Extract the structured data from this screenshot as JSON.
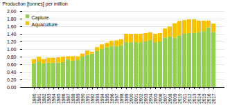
{
  "chart_data": {
    "type": "bar",
    "stacked": true,
    "categories": [
      "1980",
      "1981",
      "1982",
      "1983",
      "1984",
      "1985",
      "1986",
      "1987",
      "1988",
      "1989",
      "1990",
      "1991",
      "1992",
      "1993",
      "1994",
      "1995",
      "1996",
      "1997",
      "1998",
      "1999",
      "2000",
      "2001",
      "2002",
      "2003",
      "2004",
      "2005",
      "2006",
      "2007",
      "2008",
      "2009",
      "2010",
      "2011",
      "2012",
      "2013",
      "2014",
      "2015",
      "2016",
      "2017"
    ],
    "series": [
      {
        "name": "Capture",
        "color": "#92d050",
        "values": [
          0.62,
          0.67,
          0.62,
          0.64,
          0.64,
          0.64,
          0.66,
          0.73,
          0.69,
          0.71,
          0.8,
          0.84,
          0.88,
          0.95,
          1.0,
          1.04,
          1.08,
          1.07,
          1.1,
          1.18,
          1.18,
          1.18,
          1.18,
          1.2,
          1.24,
          1.18,
          1.2,
          1.3,
          1.33,
          1.3,
          1.36,
          1.4,
          1.42,
          1.42,
          1.45,
          1.47,
          1.57,
          1.45
        ]
      },
      {
        "name": "Aquaculture",
        "color": "#ffc000",
        "values": [
          0.12,
          0.13,
          0.12,
          0.13,
          0.13,
          0.14,
          0.14,
          0.08,
          0.12,
          0.1,
          0.08,
          0.12,
          0.05,
          0.1,
          0.12,
          0.12,
          0.14,
          0.16,
          0.16,
          0.22,
          0.22,
          0.22,
          0.22,
          0.22,
          0.2,
          0.22,
          0.22,
          0.24,
          0.26,
          0.38,
          0.38,
          0.36,
          0.36,
          0.36,
          0.3,
          0.28,
          0.18,
          0.22
        ]
      }
    ],
    "ylabel": "Production [tonnes] per million",
    "ylim": [
      0.0,
      2.0
    ],
    "yticks": [
      {
        "value": 0.0,
        "label": "0.00"
      },
      {
        "value": 0.2,
        "label": "0.20"
      },
      {
        "value": 0.4,
        "label": "0.40"
      },
      {
        "value": 0.6,
        "label": "0.60"
      },
      {
        "value": 0.8,
        "label": "0.80"
      },
      {
        "value": 1.0,
        "label": "1.00"
      },
      {
        "value": 1.2,
        "label": "1.20"
      },
      {
        "value": 1.4,
        "label": "1.40"
      },
      {
        "value": 1.6,
        "label": "1.60"
      },
      {
        "value": 1.8,
        "label": "1.80"
      },
      {
        "value": 2.0,
        "label": "2.00"
      }
    ],
    "grid": true,
    "legend": "upper left"
  }
}
